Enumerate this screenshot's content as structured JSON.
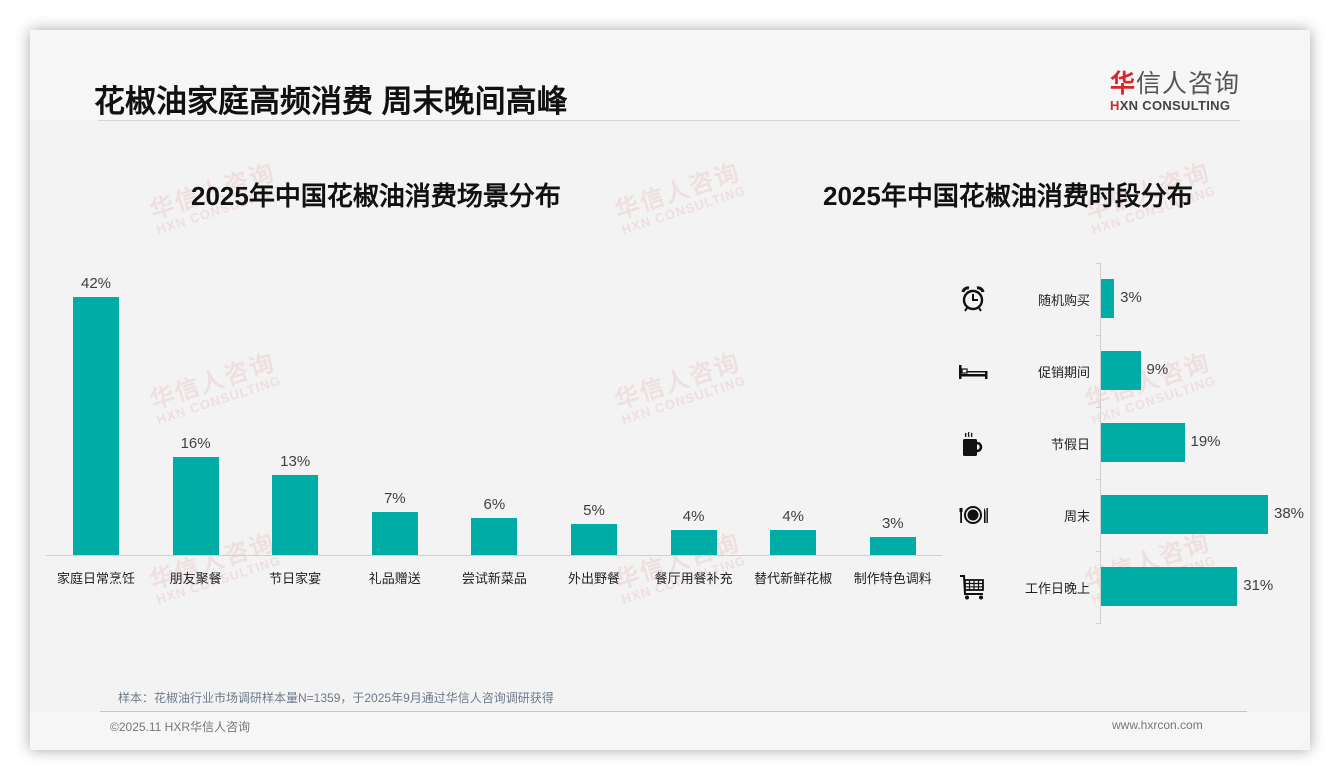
{
  "header": {
    "title": "花椒油家庭高频消费 周末晚间高峰",
    "logo_cn_first": "华",
    "logo_cn_rest": "信人咨询",
    "logo_en_first": "H",
    "logo_en_rest": "XN CONSULTING"
  },
  "watermark": {
    "cn": "华信人咨询",
    "en": "HXN CONSULTING"
  },
  "colors": {
    "bar": "#00aca6",
    "brand_red": "#d8262c",
    "title": "#111111",
    "background": "#f3f3f3"
  },
  "chart_data": [
    {
      "type": "bar",
      "orientation": "vertical",
      "title": "2025年中国花椒油消费场景分布",
      "xlabel": "",
      "ylabel": "",
      "categories": [
        "家庭日常烹饪",
        "朋友聚餐",
        "节日家宴",
        "礼品赠送",
        "尝试新菜品",
        "外出野餐",
        "餐厅用餐补充",
        "替代新鲜花椒",
        "制作特色调料"
      ],
      "values": [
        42,
        16,
        13,
        7,
        6,
        5,
        4,
        4,
        3
      ],
      "value_labels": [
        "42%",
        "16%",
        "13%",
        "7%",
        "6%",
        "5%",
        "4%",
        "4%",
        "3%"
      ],
      "unit": "%",
      "ylim": [
        0,
        45
      ],
      "grid": false,
      "legend": "none"
    },
    {
      "type": "bar",
      "orientation": "horizontal",
      "title": "2025年中国花椒油消费时段分布",
      "xlabel": "",
      "ylabel": "",
      "categories": [
        "随机购买",
        "促销期间",
        "节假日",
        "周末",
        "工作日晚上"
      ],
      "values": [
        3,
        9,
        19,
        38,
        31
      ],
      "value_labels": [
        "3%",
        "9%",
        "19%",
        "38%",
        "31%"
      ],
      "icons": [
        "alarm-clock-icon",
        "bed-icon",
        "hot-mug-icon",
        "plate-cutlery-icon",
        "shopping-cart-icon"
      ],
      "unit": "%",
      "xlim": [
        0,
        40
      ],
      "grid": false,
      "legend": "none"
    }
  ],
  "footer": {
    "note": "样本：花椒油行业市场调研样本量N=1359，于2025年9月通过华信人咨询调研获得",
    "copyright": "©2025.11 HXR华信人咨询",
    "website": "www.hxrcon.com"
  }
}
